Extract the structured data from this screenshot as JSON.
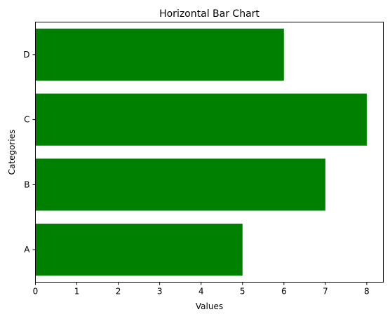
{
  "chart_data": {
    "type": "bar",
    "orientation": "horizontal",
    "title": "Horizontal Bar Chart",
    "xlabel": "Values",
    "ylabel": "Categories",
    "categories": [
      "A",
      "B",
      "C",
      "D"
    ],
    "values": [
      5,
      7,
      8,
      6
    ],
    "xlim": [
      0,
      8.4
    ],
    "xticks": [
      0,
      1,
      2,
      3,
      4,
      5,
      6,
      7,
      8
    ],
    "grid": false,
    "legend": "none",
    "bar_color": "#008000"
  }
}
